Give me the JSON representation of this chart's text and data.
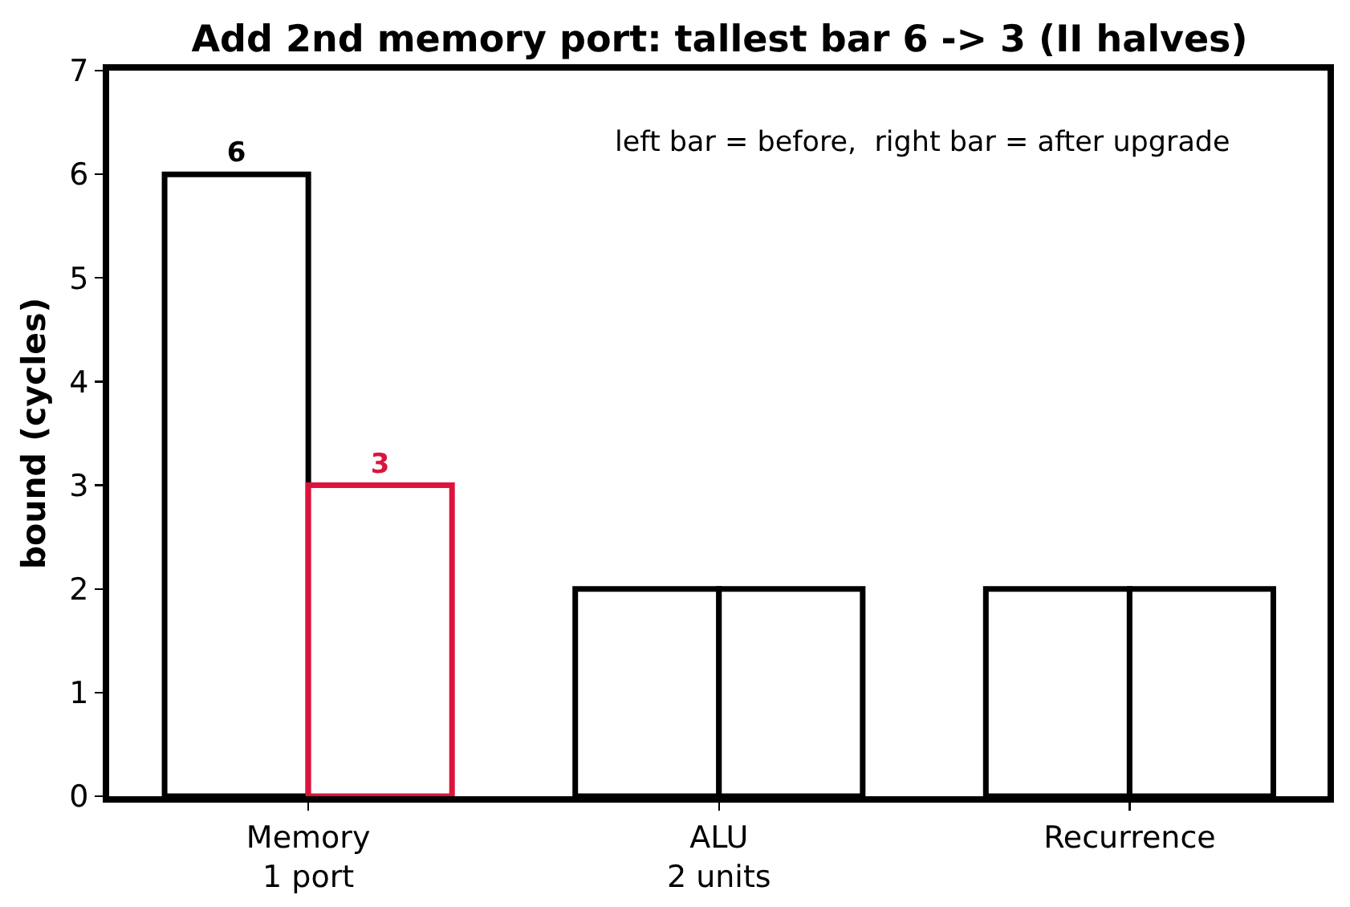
{
  "chart_data": {
    "type": "bar",
    "title": "Add 2nd memory port: tallest bar 6 -> 3 (II halves)",
    "ylabel": "bound (cycles)",
    "categories": [
      "Memory\n1 port",
      "ALU\n2 units",
      "Recurrence"
    ],
    "series": [
      {
        "color": "#000000",
        "values": [
          6,
          2,
          2
        ],
        "value_labels": [
          "6",
          null,
          null
        ]
      },
      {
        "colors": [
          "#dc143c",
          "#000000",
          "#000000"
        ],
        "values": [
          3,
          2,
          2
        ],
        "value_labels": [
          "3",
          null,
          null
        ]
      }
    ],
    "ylim": [
      0,
      7
    ],
    "yticks": [
      0,
      1,
      2,
      3,
      4,
      5,
      6,
      7
    ],
    "annotations": [
      "left bar = before,  right bar = after upgrade"
    ],
    "legend": false
  }
}
